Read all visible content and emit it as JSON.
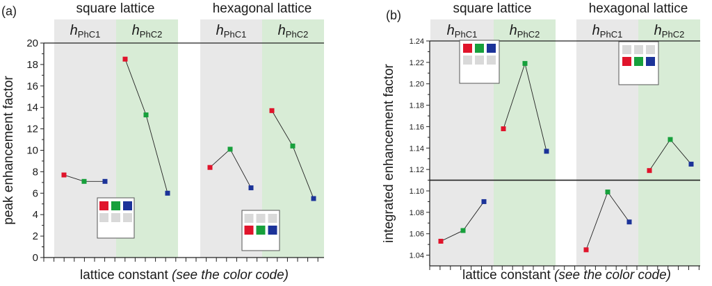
{
  "panels": [
    {
      "label": "(a)",
      "group_titles": [
        "square lattice",
        "hexagonal lattice"
      ],
      "thickness_labels": [
        {
          "main": "h",
          "sub": "PhC1"
        },
        {
          "main": "h",
          "sub": "PhC2"
        },
        {
          "main": "h",
          "sub": "PhC1"
        },
        {
          "main": "h",
          "sub": "PhC2"
        }
      ],
      "inset_codes": [
        "top-row colored",
        "bottom-row colored"
      ]
    },
    {
      "label": "(b)",
      "group_titles": [
        "square lattice",
        "hexagonal lattice"
      ],
      "thickness_labels": [
        {
          "main": "h",
          "sub": "PhC1"
        },
        {
          "main": "h",
          "sub": "PhC2"
        },
        {
          "main": "h",
          "sub": "PhC1"
        },
        {
          "main": "h",
          "sub": "PhC2"
        }
      ],
      "inset_codes": [
        "top-row colored",
        "bottom-row colored"
      ]
    }
  ],
  "colors": {
    "red": "#e0142b",
    "green": "#17a03c",
    "blue": "#1c3399",
    "gray_band": "#e8e8e8",
    "green_band": "#d8ecd6",
    "inset_gray": "#d9d9d9"
  },
  "chart_data": [
    {
      "type": "scatter",
      "title": "(a)",
      "xlabel": "lattice constant",
      "xlabel_note": "(see the color code)",
      "ylabel": "peak enhancement factor",
      "ylim": [
        0,
        20
      ],
      "yticks": [
        0,
        2,
        4,
        6,
        8,
        10,
        12,
        14,
        16,
        18,
        20
      ],
      "categories": [
        "square hPhC1",
        "square hPhC2",
        "hexagonal hPhC1",
        "hexagonal hPhC2"
      ],
      "series": [
        {
          "name": "square lattice, hPhC1",
          "colors": [
            "red",
            "green",
            "blue"
          ],
          "values": [
            7.7,
            7.1,
            7.1
          ]
        },
        {
          "name": "square lattice, hPhC2",
          "colors": [
            "red",
            "green",
            "blue"
          ],
          "values": [
            18.5,
            13.3,
            6.0
          ]
        },
        {
          "name": "hexagonal lattice, hPhC1",
          "colors": [
            "red",
            "green",
            "blue"
          ],
          "values": [
            8.4,
            10.1,
            6.5
          ]
        },
        {
          "name": "hexagonal lattice, hPhC2",
          "colors": [
            "red",
            "green",
            "blue"
          ],
          "values": [
            13.7,
            10.4,
            5.5
          ]
        }
      ]
    },
    {
      "type": "scatter",
      "title": "(b)",
      "xlabel": "lattice constant",
      "xlabel_note": "(see the color code)",
      "ylabel": "integrated enhancement factor",
      "ylim": [
        1.03,
        1.24
      ],
      "yticks": [
        1.04,
        1.06,
        1.08,
        1.1,
        1.12,
        1.14,
        1.16,
        1.18,
        1.2,
        1.22,
        1.24
      ],
      "reference_line": 1.11,
      "categories": [
        "square hPhC1",
        "square hPhC2",
        "hexagonal hPhC1",
        "hexagonal hPhC2"
      ],
      "series": [
        {
          "name": "square lattice, hPhC1",
          "colors": [
            "red",
            "green",
            "blue"
          ],
          "values": [
            1.053,
            1.063,
            1.09
          ]
        },
        {
          "name": "square lattice, hPhC2",
          "colors": [
            "red",
            "green",
            "blue"
          ],
          "values": [
            1.158,
            1.219,
            1.137
          ]
        },
        {
          "name": "hexagonal lattice, hPhC1",
          "colors": [
            "red",
            "green",
            "blue"
          ],
          "values": [
            1.045,
            1.099,
            1.071
          ]
        },
        {
          "name": "hexagonal lattice, hPhC2",
          "colors": [
            "red",
            "green",
            "blue"
          ],
          "values": [
            1.119,
            1.148,
            1.125
          ]
        }
      ]
    }
  ]
}
